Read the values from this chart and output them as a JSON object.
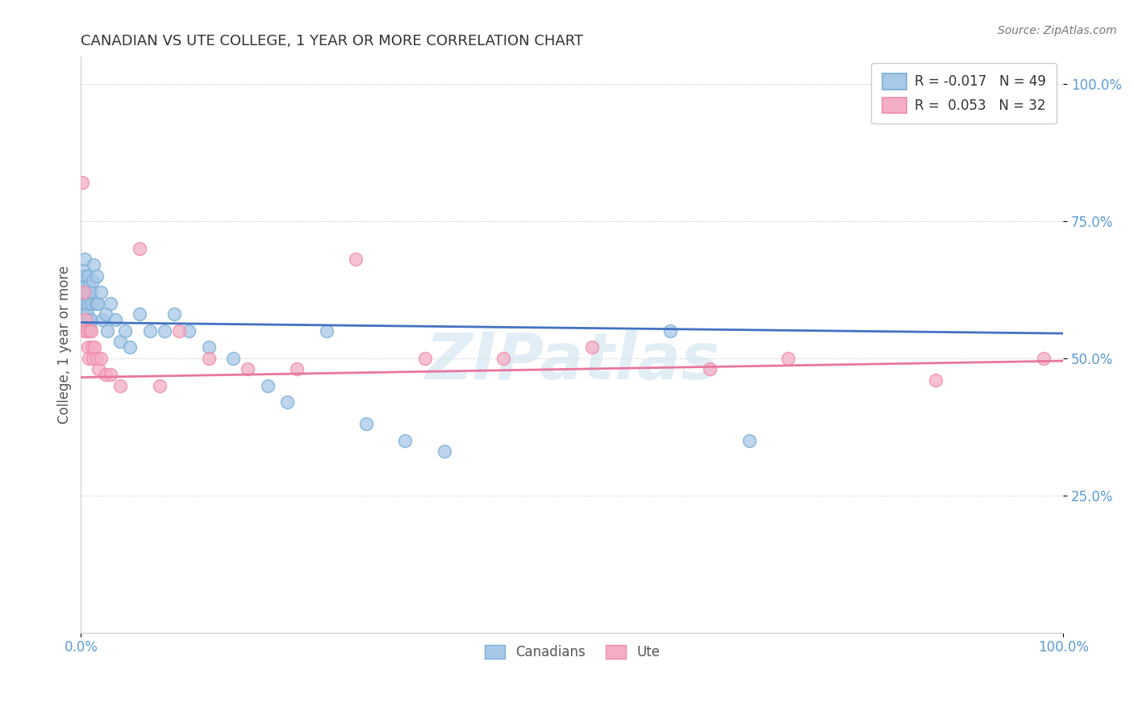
{
  "title": "CANADIAN VS UTE COLLEGE, 1 YEAR OR MORE CORRELATION CHART",
  "source": "Source: ZipAtlas.com",
  "ylabel": "College, 1 year or more",
  "legend_canadian_label": "Canadians",
  "legend_ute_label": "Ute",
  "legend_line1": "R = -0.017   N = 49",
  "legend_line2": "R =  0.053   N = 32",
  "canadian_color": "#a8c8e8",
  "ute_color": "#f4aec4",
  "canadian_edge_color": "#7aafd4",
  "ute_edge_color": "#f08aaa",
  "canadian_line_color": "#4472c4",
  "ute_line_color": "#e8769f",
  "tick_color": "#5b9bd5",
  "title_color": "#404040",
  "background_color": "#ffffff",
  "watermark_text": "ZIPatlas",
  "watermark_color": "#d0e4f0",
  "canadian_x": [
    0.001,
    0.002,
    0.002,
    0.003,
    0.003,
    0.004,
    0.004,
    0.005,
    0.005,
    0.006,
    0.006,
    0.007,
    0.007,
    0.008,
    0.008,
    0.009,
    0.009,
    0.01,
    0.01,
    0.011,
    0.012,
    0.013,
    0.015,
    0.016,
    0.017,
    0.02,
    0.022,
    0.025,
    0.027,
    0.03,
    0.035,
    0.04,
    0.045,
    0.05,
    0.06,
    0.07,
    0.085,
    0.095,
    0.11,
    0.13,
    0.155,
    0.19,
    0.21,
    0.25,
    0.29,
    0.33,
    0.37,
    0.6,
    0.68
  ],
  "canadian_y": [
    0.62,
    0.64,
    0.6,
    0.66,
    0.58,
    0.63,
    0.68,
    0.65,
    0.6,
    0.62,
    0.58,
    0.65,
    0.6,
    0.63,
    0.57,
    0.61,
    0.56,
    0.62,
    0.57,
    0.6,
    0.64,
    0.67,
    0.6,
    0.65,
    0.6,
    0.62,
    0.57,
    0.58,
    0.55,
    0.6,
    0.57,
    0.53,
    0.55,
    0.52,
    0.58,
    0.55,
    0.55,
    0.58,
    0.55,
    0.52,
    0.5,
    0.45,
    0.42,
    0.55,
    0.38,
    0.35,
    0.33,
    0.55,
    0.35
  ],
  "ute_x": [
    0.001,
    0.003,
    0.004,
    0.005,
    0.006,
    0.007,
    0.008,
    0.009,
    0.01,
    0.011,
    0.012,
    0.014,
    0.016,
    0.018,
    0.02,
    0.025,
    0.03,
    0.04,
    0.06,
    0.08,
    0.1,
    0.13,
    0.17,
    0.22,
    0.28,
    0.35,
    0.43,
    0.52,
    0.64,
    0.72,
    0.87,
    0.98
  ],
  "ute_y": [
    0.82,
    0.62,
    0.55,
    0.57,
    0.55,
    0.52,
    0.5,
    0.55,
    0.55,
    0.52,
    0.5,
    0.52,
    0.5,
    0.48,
    0.5,
    0.47,
    0.47,
    0.45,
    0.7,
    0.45,
    0.55,
    0.5,
    0.48,
    0.48,
    0.68,
    0.5,
    0.5,
    0.52,
    0.48,
    0.5,
    0.46,
    0.5
  ],
  "xlim": [
    0.0,
    1.0
  ],
  "ylim": [
    0.0,
    1.05
  ],
  "y_ticks": [
    0.25,
    0.5,
    0.75,
    1.0
  ],
  "y_tick_labels": [
    "25.0%",
    "50.0%",
    "75.0%",
    "100.0%"
  ],
  "x_ticks": [
    0.0,
    1.0
  ],
  "x_tick_labels": [
    "0.0%",
    "100.0%"
  ]
}
